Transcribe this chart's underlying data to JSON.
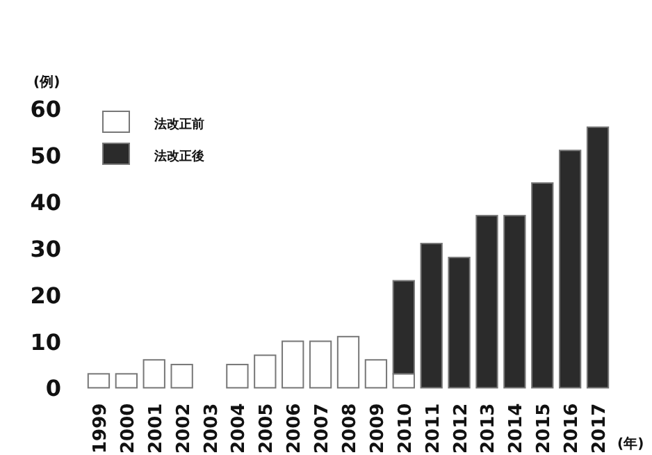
{
  "chart_data": {
    "type": "bar",
    "stacked": true,
    "categories": [
      "1999",
      "2000",
      "2001",
      "2002",
      "2003",
      "2004",
      "2005",
      "2006",
      "2007",
      "2008",
      "2009",
      "2010",
      "2011",
      "2012",
      "2013",
      "2014",
      "2015",
      "2016",
      "2017"
    ],
    "series": [
      {
        "name": "法改正前",
        "color": "#ffffff",
        "values": [
          3,
          3,
          6,
          5,
          0,
          5,
          7,
          10,
          10,
          11,
          6,
          3,
          null,
          null,
          null,
          null,
          null,
          null,
          null
        ]
      },
      {
        "name": "法改正後",
        "color": "#2b2b2b",
        "values": [
          null,
          null,
          null,
          null,
          null,
          null,
          null,
          null,
          null,
          null,
          null,
          20,
          31,
          28,
          37,
          37,
          44,
          51,
          56
        ]
      }
    ],
    "ylabel": "(例)",
    "xlabel": "(年)",
    "ylim": [
      0,
      60
    ],
    "yticks": [
      0,
      10,
      20,
      30,
      40,
      50,
      60
    ],
    "legend": "top left",
    "grid": false
  }
}
